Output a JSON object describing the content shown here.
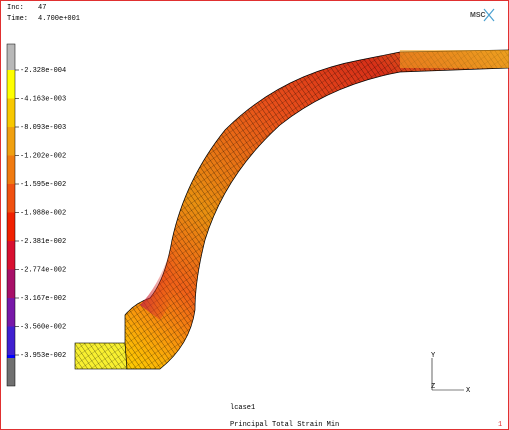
{
  "header": {
    "inc_label": "Inc:",
    "inc": "47",
    "time_label": "Time:",
    "time": "4.700e+001"
  },
  "logo": "MSC",
  "legend": {
    "labels": [
      "-2.328e-004",
      "-4.163e-003",
      "-8.093e-003",
      "-1.202e-002",
      "-1.595e-002",
      "-1.988e-002",
      "-2.381e-002",
      "-2.774e-002",
      "-3.167e-002",
      "-3.560e-002",
      "-3.953e-002"
    ]
  },
  "triad": {
    "y": "Y",
    "z": "Z",
    "x": "X"
  },
  "footer": {
    "load_case": "lcase1",
    "result": "Principal Total Strain Min",
    "page": "1"
  }
}
